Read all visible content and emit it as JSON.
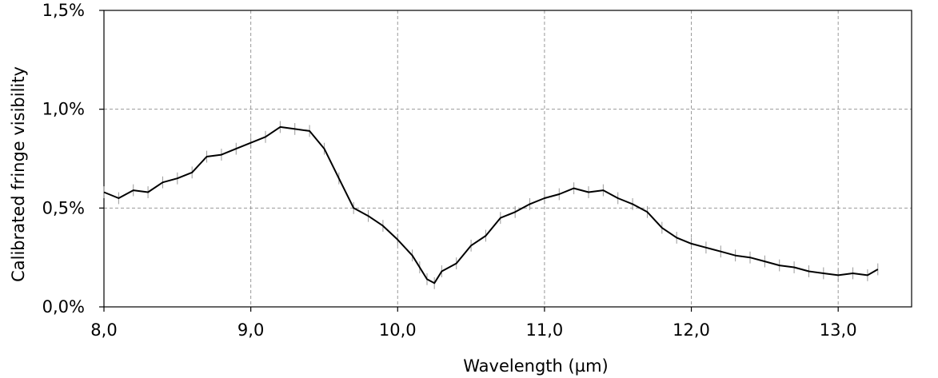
{
  "chart_data": {
    "type": "line",
    "title": "",
    "xlabel": "Wavelength (µm)",
    "ylabel": "Calibrated fringe visibility",
    "xlim": [
      8.0,
      13.5
    ],
    "ylim": [
      0.0,
      1.5
    ],
    "x_ticks": [
      8.0,
      9.0,
      10.0,
      11.0,
      12.0,
      13.0
    ],
    "x_tick_labels": [
      "8,0",
      "9,0",
      "10,0",
      "11,0",
      "12,0",
      "13,0"
    ],
    "y_ticks": [
      0.0,
      0.5,
      1.0,
      1.5
    ],
    "y_tick_labels": [
      "0,0%",
      "0,5%",
      "1,0%",
      "1,5%"
    ],
    "grid": true,
    "grid_style": "dashed",
    "series": [
      {
        "color": "#000000",
        "error_bar_color": "#999999",
        "x": [
          8.0,
          8.1,
          8.2,
          8.3,
          8.4,
          8.5,
          8.6,
          8.7,
          8.8,
          8.9,
          9.0,
          9.1,
          9.2,
          9.3,
          9.4,
          9.5,
          9.6,
          9.7,
          9.8,
          9.9,
          10.0,
          10.1,
          10.15,
          10.2,
          10.25,
          10.3,
          10.4,
          10.5,
          10.6,
          10.7,
          10.8,
          10.9,
          11.0,
          11.1,
          11.2,
          11.3,
          11.4,
          11.5,
          11.6,
          11.7,
          11.8,
          11.9,
          12.0,
          12.1,
          12.2,
          12.3,
          12.4,
          12.5,
          12.6,
          12.7,
          12.8,
          12.9,
          13.0,
          13.1,
          13.2,
          13.27
        ],
        "y": [
          0.58,
          0.55,
          0.59,
          0.58,
          0.63,
          0.65,
          0.68,
          0.76,
          0.77,
          0.8,
          0.83,
          0.86,
          0.91,
          0.9,
          0.89,
          0.8,
          0.65,
          0.5,
          0.46,
          0.41,
          0.34,
          0.26,
          0.2,
          0.14,
          0.12,
          0.18,
          0.22,
          0.31,
          0.36,
          0.45,
          0.48,
          0.52,
          0.55,
          0.57,
          0.6,
          0.58,
          0.59,
          0.55,
          0.52,
          0.48,
          0.4,
          0.35,
          0.32,
          0.3,
          0.28,
          0.26,
          0.25,
          0.23,
          0.21,
          0.2,
          0.18,
          0.17,
          0.16,
          0.17,
          0.16,
          0.19
        ],
        "y_error": 0.03
      }
    ]
  }
}
